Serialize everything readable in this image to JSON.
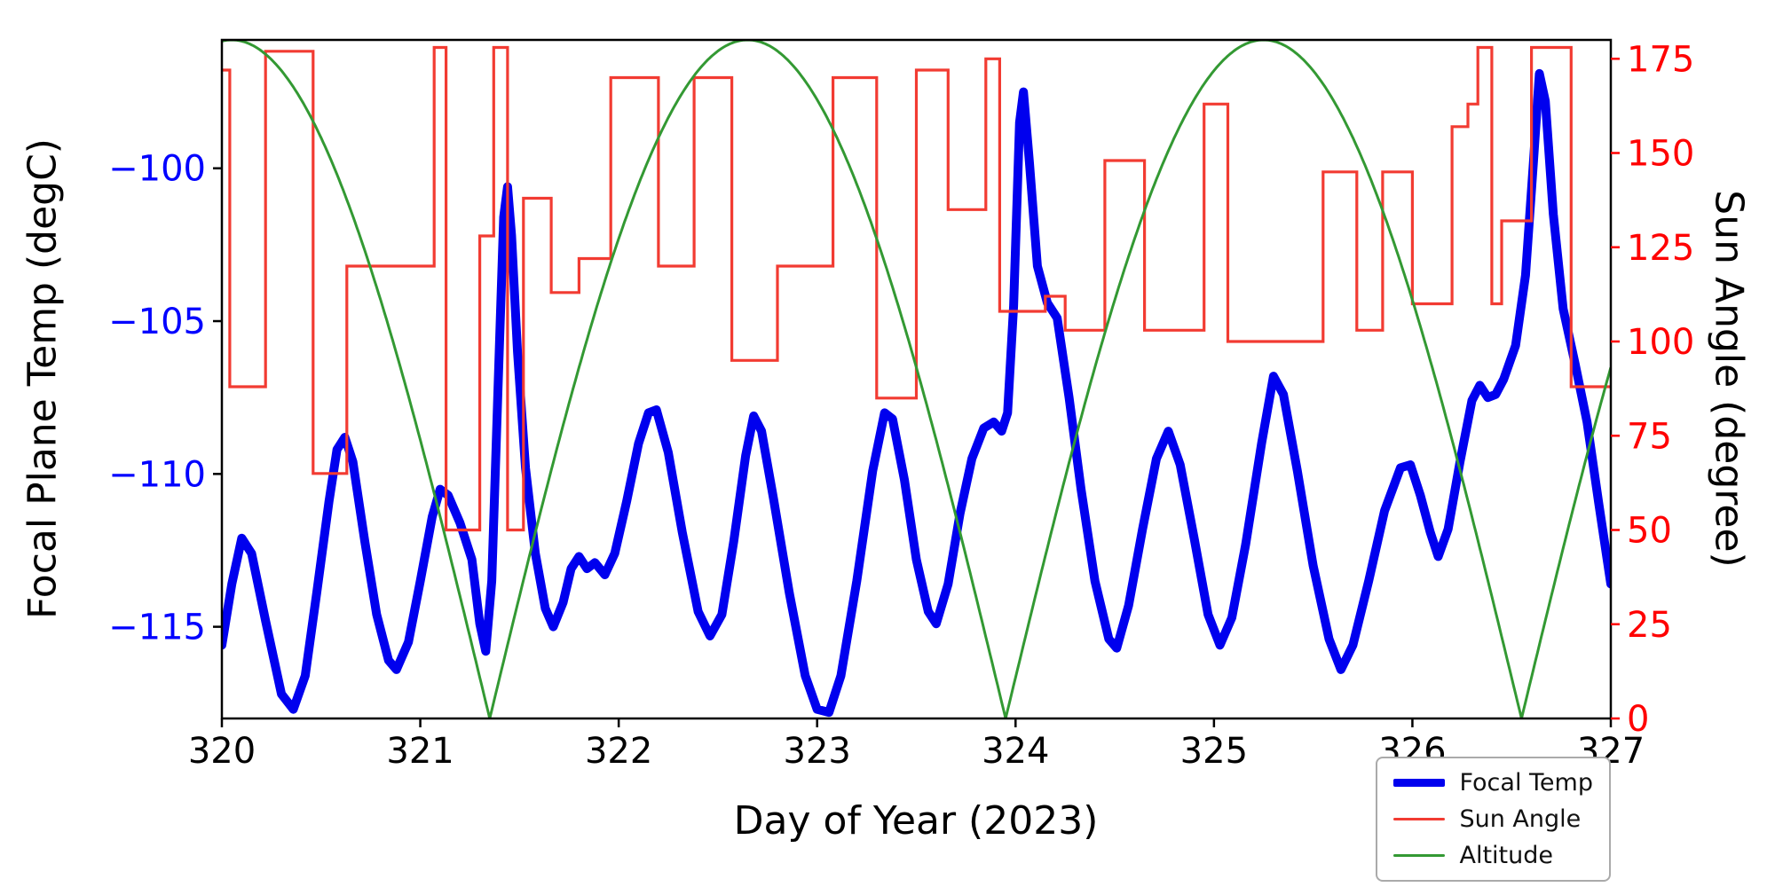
{
  "chart_data": {
    "type": "line",
    "title": "",
    "xlabel": "Day of Year (2023)",
    "ylabel_left": "Focal Plane Temp (degC)",
    "ylabel_right": "Sun Angle (degree)",
    "xlim": [
      320,
      327
    ],
    "left_ylim": [
      -118.0,
      -95.8
    ],
    "right_ylim": [
      0,
      180
    ],
    "grid": false,
    "x_ticks": [
      320,
      321,
      322,
      323,
      324,
      325,
      326,
      327
    ],
    "x_tick_labels": [
      "320",
      "321",
      "322",
      "323",
      "324",
      "325",
      "326",
      "327"
    ],
    "left_ticks": [
      -100,
      -105,
      -110,
      -115
    ],
    "left_tick_labels": [
      "−100",
      "−105",
      "−110",
      "−115"
    ],
    "right_ticks": [
      0,
      25,
      50,
      75,
      100,
      125,
      150,
      175
    ],
    "right_tick_labels": [
      "0",
      "25",
      "50",
      "75",
      "100",
      "125",
      "150",
      "175"
    ],
    "colors": {
      "focal_temp": "#0000ee",
      "sun_angle": "#f23b32",
      "altitude": "#339933",
      "left_tick_label": "#0000ff",
      "right_tick_label": "#ff0000",
      "axis": "#000000"
    },
    "series": [
      {
        "name": "Focal Temp",
        "axis": "left",
        "style": "line",
        "line_width": 10,
        "points": [
          [
            320.0,
            -115.6
          ],
          [
            320.05,
            -113.6
          ],
          [
            320.1,
            -112.1
          ],
          [
            320.15,
            -112.6
          ],
          [
            320.22,
            -114.8
          ],
          [
            320.3,
            -117.2
          ],
          [
            320.36,
            -117.7
          ],
          [
            320.42,
            -116.6
          ],
          [
            320.48,
            -113.8
          ],
          [
            320.54,
            -110.9
          ],
          [
            320.58,
            -109.2
          ],
          [
            320.62,
            -108.8
          ],
          [
            320.66,
            -109.6
          ],
          [
            320.72,
            -112.2
          ],
          [
            320.78,
            -114.6
          ],
          [
            320.84,
            -116.1
          ],
          [
            320.88,
            -116.4
          ],
          [
            320.94,
            -115.5
          ],
          [
            321.0,
            -113.5
          ],
          [
            321.06,
            -111.4
          ],
          [
            321.1,
            -110.5
          ],
          [
            321.14,
            -110.7
          ],
          [
            321.2,
            -111.6
          ],
          [
            321.26,
            -112.8
          ],
          [
            321.3,
            -114.9
          ],
          [
            321.33,
            -115.8
          ],
          [
            321.36,
            -113.5
          ],
          [
            321.39,
            -107.5
          ],
          [
            321.42,
            -101.6
          ],
          [
            321.44,
            -100.6
          ],
          [
            321.46,
            -102.2
          ],
          [
            321.49,
            -106.0
          ],
          [
            321.53,
            -109.8
          ],
          [
            321.58,
            -112.6
          ],
          [
            321.63,
            -114.4
          ],
          [
            321.67,
            -115.0
          ],
          [
            321.72,
            -114.2
          ],
          [
            321.76,
            -113.1
          ],
          [
            321.8,
            -112.7
          ],
          [
            321.84,
            -113.1
          ],
          [
            321.88,
            -112.9
          ],
          [
            321.93,
            -113.3
          ],
          [
            321.98,
            -112.6
          ],
          [
            322.04,
            -110.9
          ],
          [
            322.1,
            -109.0
          ],
          [
            322.15,
            -108.0
          ],
          [
            322.19,
            -107.9
          ],
          [
            322.25,
            -109.3
          ],
          [
            322.32,
            -111.9
          ],
          [
            322.4,
            -114.5
          ],
          [
            322.46,
            -115.3
          ],
          [
            322.52,
            -114.6
          ],
          [
            322.58,
            -112.2
          ],
          [
            322.64,
            -109.4
          ],
          [
            322.68,
            -108.1
          ],
          [
            322.72,
            -108.6
          ],
          [
            322.78,
            -110.8
          ],
          [
            322.86,
            -113.9
          ],
          [
            322.94,
            -116.6
          ],
          [
            323.0,
            -117.7
          ],
          [
            323.06,
            -117.8
          ],
          [
            323.12,
            -116.6
          ],
          [
            323.2,
            -113.5
          ],
          [
            323.28,
            -109.9
          ],
          [
            323.34,
            -108.0
          ],
          [
            323.38,
            -108.2
          ],
          [
            323.44,
            -110.2
          ],
          [
            323.5,
            -112.8
          ],
          [
            323.56,
            -114.5
          ],
          [
            323.6,
            -114.9
          ],
          [
            323.66,
            -113.6
          ],
          [
            323.72,
            -111.3
          ],
          [
            323.78,
            -109.5
          ],
          [
            323.84,
            -108.5
          ],
          [
            323.89,
            -108.3
          ],
          [
            323.93,
            -108.6
          ],
          [
            323.96,
            -108.0
          ],
          [
            323.99,
            -104.5
          ],
          [
            324.02,
            -98.5
          ],
          [
            324.04,
            -97.5
          ],
          [
            324.07,
            -99.8
          ],
          [
            324.11,
            -103.2
          ],
          [
            324.16,
            -104.4
          ],
          [
            324.21,
            -104.9
          ],
          [
            324.27,
            -107.5
          ],
          [
            324.33,
            -110.5
          ],
          [
            324.4,
            -113.5
          ],
          [
            324.47,
            -115.4
          ],
          [
            324.51,
            -115.7
          ],
          [
            324.57,
            -114.3
          ],
          [
            324.64,
            -111.8
          ],
          [
            324.71,
            -109.5
          ],
          [
            324.77,
            -108.6
          ],
          [
            324.83,
            -109.7
          ],
          [
            324.9,
            -112.1
          ],
          [
            324.97,
            -114.6
          ],
          [
            325.03,
            -115.6
          ],
          [
            325.09,
            -114.7
          ],
          [
            325.16,
            -112.3
          ],
          [
            325.24,
            -109.0
          ],
          [
            325.3,
            -106.8
          ],
          [
            325.35,
            -107.4
          ],
          [
            325.42,
            -109.9
          ],
          [
            325.5,
            -113.0
          ],
          [
            325.58,
            -115.4
          ],
          [
            325.64,
            -116.4
          ],
          [
            325.7,
            -115.6
          ],
          [
            325.78,
            -113.5
          ],
          [
            325.86,
            -111.2
          ],
          [
            325.94,
            -109.8
          ],
          [
            325.99,
            -109.7
          ],
          [
            326.04,
            -110.7
          ],
          [
            326.09,
            -111.9
          ],
          [
            326.13,
            -112.7
          ],
          [
            326.18,
            -111.8
          ],
          [
            326.24,
            -109.6
          ],
          [
            326.3,
            -107.6
          ],
          [
            326.34,
            -107.1
          ],
          [
            326.38,
            -107.5
          ],
          [
            326.42,
            -107.4
          ],
          [
            326.46,
            -106.9
          ],
          [
            326.52,
            -105.8
          ],
          [
            326.57,
            -103.5
          ],
          [
            326.61,
            -99.8
          ],
          [
            326.64,
            -96.9
          ],
          [
            326.67,
            -97.8
          ],
          [
            326.71,
            -101.5
          ],
          [
            326.76,
            -104.6
          ],
          [
            326.82,
            -106.4
          ],
          [
            326.88,
            -108.3
          ],
          [
            326.94,
            -111.0
          ],
          [
            327.0,
            -113.6
          ]
        ]
      },
      {
        "name": "Sun Angle",
        "axis": "right",
        "style": "step",
        "line_width": 3.2,
        "points": [
          [
            320.0,
            172
          ],
          [
            320.04,
            88
          ],
          [
            320.22,
            177
          ],
          [
            320.46,
            65
          ],
          [
            320.63,
            120
          ],
          [
            321.07,
            178
          ],
          [
            321.13,
            50
          ],
          [
            321.3,
            128
          ],
          [
            321.37,
            178
          ],
          [
            321.44,
            50
          ],
          [
            321.52,
            138
          ],
          [
            321.66,
            113
          ],
          [
            321.8,
            122
          ],
          [
            321.96,
            170
          ],
          [
            322.2,
            120
          ],
          [
            322.38,
            170
          ],
          [
            322.57,
            95
          ],
          [
            322.8,
            120
          ],
          [
            323.08,
            170
          ],
          [
            323.3,
            85
          ],
          [
            323.5,
            172
          ],
          [
            323.66,
            135
          ],
          [
            323.85,
            175
          ],
          [
            323.92,
            108
          ],
          [
            324.15,
            112
          ],
          [
            324.25,
            103
          ],
          [
            324.45,
            148
          ],
          [
            324.65,
            103
          ],
          [
            324.95,
            163
          ],
          [
            325.07,
            100
          ],
          [
            325.55,
            145
          ],
          [
            325.72,
            103
          ],
          [
            325.85,
            145
          ],
          [
            326.0,
            110
          ],
          [
            326.2,
            157
          ],
          [
            326.28,
            163
          ],
          [
            326.33,
            178
          ],
          [
            326.4,
            110
          ],
          [
            326.45,
            132
          ],
          [
            326.6,
            178
          ],
          [
            326.8,
            88
          ]
        ]
      },
      {
        "name": "Altitude",
        "axis": "right",
        "style": "abs-cosine",
        "line_width": 3,
        "amplitude": 180,
        "peak_x": 320.05,
        "period": 2.6,
        "zeros_at": [
          321.35,
          323.95,
          326.55
        ],
        "peaks_at": [
          320.05,
          322.65,
          325.25
        ]
      }
    ],
    "legend": {
      "position": "lower-right-outside",
      "entries": [
        {
          "label": "Focal Temp",
          "color": "#0000ee",
          "line_width": 9
        },
        {
          "label": "Sun Angle",
          "color": "#f23b32",
          "line_width": 3
        },
        {
          "label": "Altitude",
          "color": "#339933",
          "line_width": 3
        }
      ]
    }
  }
}
